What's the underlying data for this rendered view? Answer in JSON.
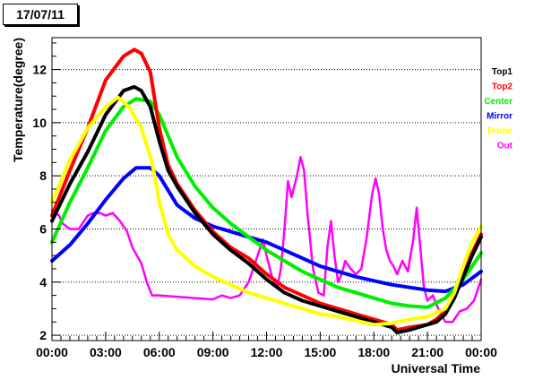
{
  "chart_data": {
    "type": "line",
    "title": "17/07/11",
    "xlabel": "Universal Time",
    "ylabel": "Temperature(degree)",
    "xlim": [
      0,
      24
    ],
    "ylim": [
      1.8,
      13.2
    ],
    "x_ticks": [
      0,
      3,
      6,
      9,
      12,
      15,
      18,
      21,
      24
    ],
    "x_tick_labels": [
      "00:00",
      "03:00",
      "06:00",
      "09:00",
      "12:00",
      "15:00",
      "18:00",
      "21:00",
      "00:00"
    ],
    "y_ticks": [
      2,
      4,
      6,
      8,
      10,
      12
    ],
    "y_tick_labels": [
      "2",
      "4",
      "6",
      "8",
      "10",
      "12"
    ],
    "grid": "horizontal dotted",
    "legend_position": "right",
    "series": [
      {
        "name": "Top1",
        "color": "#000000",
        "width": 4,
        "points": [
          [
            0,
            6.3
          ],
          [
            1,
            7.7
          ],
          [
            2,
            8.9
          ],
          [
            3,
            10.3
          ],
          [
            4,
            11.2
          ],
          [
            4.6,
            11.35
          ],
          [
            5,
            11.2
          ],
          [
            5.5,
            10.6
          ],
          [
            6,
            9.3
          ],
          [
            6.5,
            8.2
          ],
          [
            7,
            7.6
          ],
          [
            7.5,
            7.1
          ],
          [
            8,
            6.6
          ],
          [
            9,
            5.8
          ],
          [
            10,
            5.2
          ],
          [
            11,
            4.7
          ],
          [
            12,
            4.1
          ],
          [
            13,
            3.6
          ],
          [
            14,
            3.3
          ],
          [
            15,
            3.1
          ],
          [
            16,
            2.9
          ],
          [
            17,
            2.7
          ],
          [
            18,
            2.5
          ],
          [
            19,
            2.3
          ],
          [
            19.3,
            2.1
          ],
          [
            20,
            2.2
          ],
          [
            21,
            2.4
          ],
          [
            21.5,
            2.5
          ],
          [
            22,
            2.8
          ],
          [
            22.5,
            3.4
          ],
          [
            23,
            4.2
          ],
          [
            23.5,
            5.0
          ],
          [
            24,
            5.7
          ]
        ]
      },
      {
        "name": "Top2",
        "color": "#ff0000",
        "width": 4,
        "points": [
          [
            0,
            6.5
          ],
          [
            1,
            8.2
          ],
          [
            2,
            9.8
          ],
          [
            3,
            11.6
          ],
          [
            4,
            12.5
          ],
          [
            4.6,
            12.75
          ],
          [
            5,
            12.6
          ],
          [
            5.5,
            11.9
          ],
          [
            6,
            9.8
          ],
          [
            6.5,
            8.4
          ],
          [
            7,
            7.7
          ],
          [
            7.5,
            7.2
          ],
          [
            8,
            6.7
          ],
          [
            9,
            5.9
          ],
          [
            10,
            5.3
          ],
          [
            11,
            4.9
          ],
          [
            12,
            4.3
          ],
          [
            13,
            3.8
          ],
          [
            14,
            3.5
          ],
          [
            15,
            3.2
          ],
          [
            16,
            3.0
          ],
          [
            17,
            2.8
          ],
          [
            18,
            2.6
          ],
          [
            19,
            2.4
          ],
          [
            19.3,
            2.2
          ],
          [
            20,
            2.3
          ],
          [
            21,
            2.4
          ],
          [
            21.5,
            2.6
          ],
          [
            22,
            2.9
          ],
          [
            22.5,
            3.5
          ],
          [
            23,
            4.3
          ],
          [
            23.5,
            5.1
          ],
          [
            24,
            5.8
          ]
        ]
      },
      {
        "name": "Center",
        "color": "#00ee00",
        "width": 4,
        "points": [
          [
            0,
            5.5
          ],
          [
            1,
            7.0
          ],
          [
            2,
            8.3
          ],
          [
            3,
            9.7
          ],
          [
            4,
            10.6
          ],
          [
            4.7,
            10.9
          ],
          [
            5.5,
            10.8
          ],
          [
            6,
            10.3
          ],
          [
            7,
            8.7
          ],
          [
            8,
            7.6
          ],
          [
            9,
            6.8
          ],
          [
            10,
            6.2
          ],
          [
            11,
            5.7
          ],
          [
            12,
            5.2
          ],
          [
            13,
            4.8
          ],
          [
            14,
            4.4
          ],
          [
            15,
            4.1
          ],
          [
            16,
            3.8
          ],
          [
            17,
            3.6
          ],
          [
            18,
            3.4
          ],
          [
            19,
            3.2
          ],
          [
            20,
            3.1
          ],
          [
            21,
            3.05
          ],
          [
            22,
            3.4
          ],
          [
            23,
            4.1
          ],
          [
            24,
            5.1
          ]
        ]
      },
      {
        "name": "Mirror",
        "color": "#0000ff",
        "width": 4,
        "points": [
          [
            0,
            4.8
          ],
          [
            1,
            5.4
          ],
          [
            2,
            6.2
          ],
          [
            3,
            7.1
          ],
          [
            4,
            7.9
          ],
          [
            4.7,
            8.3
          ],
          [
            5.5,
            8.3
          ],
          [
            6,
            8.0
          ],
          [
            7,
            6.9
          ],
          [
            8,
            6.4
          ],
          [
            9,
            6.1
          ],
          [
            10,
            5.9
          ],
          [
            11,
            5.7
          ],
          [
            12,
            5.5
          ],
          [
            13,
            5.2
          ],
          [
            14,
            4.9
          ],
          [
            15,
            4.6
          ],
          [
            16,
            4.4
          ],
          [
            17,
            4.2
          ],
          [
            18,
            4.05
          ],
          [
            19,
            3.9
          ],
          [
            20,
            3.8
          ],
          [
            21,
            3.7
          ],
          [
            22,
            3.65
          ],
          [
            23,
            3.9
          ],
          [
            24,
            4.4
          ]
        ]
      },
      {
        "name": "Dome",
        "color": "#ffff00",
        "width": 4,
        "points": [
          [
            0,
            7.0
          ],
          [
            1,
            8.6
          ],
          [
            2,
            9.8
          ],
          [
            3,
            10.6
          ],
          [
            3.7,
            10.95
          ],
          [
            4.3,
            10.6
          ],
          [
            5,
            9.8
          ],
          [
            5.6,
            8.5
          ],
          [
            6,
            7.0
          ],
          [
            6.5,
            5.8
          ],
          [
            7,
            5.2
          ],
          [
            8,
            4.6
          ],
          [
            9,
            4.2
          ],
          [
            10,
            3.9
          ],
          [
            11,
            3.6
          ],
          [
            12,
            3.4
          ],
          [
            13,
            3.2
          ],
          [
            14,
            3.0
          ],
          [
            15,
            2.8
          ],
          [
            16,
            2.7
          ],
          [
            17,
            2.55
          ],
          [
            18,
            2.4
          ],
          [
            19,
            2.45
          ],
          [
            20,
            2.6
          ],
          [
            21,
            2.7
          ],
          [
            22,
            3.0
          ],
          [
            22.5,
            3.6
          ],
          [
            23,
            4.6
          ],
          [
            23.5,
            5.5
          ],
          [
            24,
            6.1
          ]
        ]
      },
      {
        "name": "Out",
        "color": "#ff00ff",
        "width": 2.5,
        "points": [
          [
            0,
            6.7
          ],
          [
            0.4,
            6.5
          ],
          [
            0.6,
            6.2
          ],
          [
            1,
            6.0
          ],
          [
            1.5,
            6.0
          ],
          [
            2,
            6.5
          ],
          [
            2.3,
            6.6
          ],
          [
            2.7,
            6.6
          ],
          [
            3,
            6.5
          ],
          [
            3.4,
            6.6
          ],
          [
            3.8,
            6.3
          ],
          [
            4.2,
            5.9
          ],
          [
            4.5,
            5.3
          ],
          [
            5,
            4.7
          ],
          [
            5.3,
            4.0
          ],
          [
            5.6,
            3.5
          ],
          [
            6,
            3.5
          ],
          [
            7,
            3.45
          ],
          [
            8,
            3.4
          ],
          [
            9,
            3.35
          ],
          [
            9.5,
            3.5
          ],
          [
            10,
            3.4
          ],
          [
            10.5,
            3.5
          ],
          [
            11,
            4.0
          ],
          [
            11.5,
            5.0
          ],
          [
            11.8,
            5.6
          ],
          [
            12,
            5.0
          ],
          [
            12.3,
            4.2
          ],
          [
            12.6,
            3.8
          ],
          [
            12.8,
            4.5
          ],
          [
            13.0,
            6.0
          ],
          [
            13.2,
            7.8
          ],
          [
            13.4,
            7.2
          ],
          [
            13.7,
            8.0
          ],
          [
            13.9,
            8.7
          ],
          [
            14.1,
            8.2
          ],
          [
            14.3,
            6.5
          ],
          [
            14.6,
            4.5
          ],
          [
            14.9,
            3.6
          ],
          [
            15.2,
            3.5
          ],
          [
            15.4,
            5.3
          ],
          [
            15.6,
            6.3
          ],
          [
            15.8,
            5.0
          ],
          [
            16.0,
            4.0
          ],
          [
            16.2,
            4.3
          ],
          [
            16.4,
            4.8
          ],
          [
            16.7,
            4.5
          ],
          [
            17.0,
            4.3
          ],
          [
            17.3,
            4.5
          ],
          [
            17.6,
            5.7
          ],
          [
            17.9,
            7.3
          ],
          [
            18.1,
            7.9
          ],
          [
            18.3,
            7.3
          ],
          [
            18.5,
            6.0
          ],
          [
            18.7,
            5.2
          ],
          [
            18.9,
            4.8
          ],
          [
            19.1,
            4.6
          ],
          [
            19.3,
            4.3
          ],
          [
            19.6,
            4.8
          ],
          [
            19.9,
            4.4
          ],
          [
            20.2,
            5.6
          ],
          [
            20.4,
            6.8
          ],
          [
            20.6,
            5.3
          ],
          [
            20.8,
            3.8
          ],
          [
            21.0,
            3.3
          ],
          [
            21.3,
            3.5
          ],
          [
            21.6,
            3.0
          ],
          [
            22.0,
            2.5
          ],
          [
            22.4,
            2.5
          ],
          [
            22.8,
            2.9
          ],
          [
            23.2,
            3.0
          ],
          [
            23.6,
            3.3
          ],
          [
            24,
            4.1
          ]
        ]
      }
    ]
  }
}
